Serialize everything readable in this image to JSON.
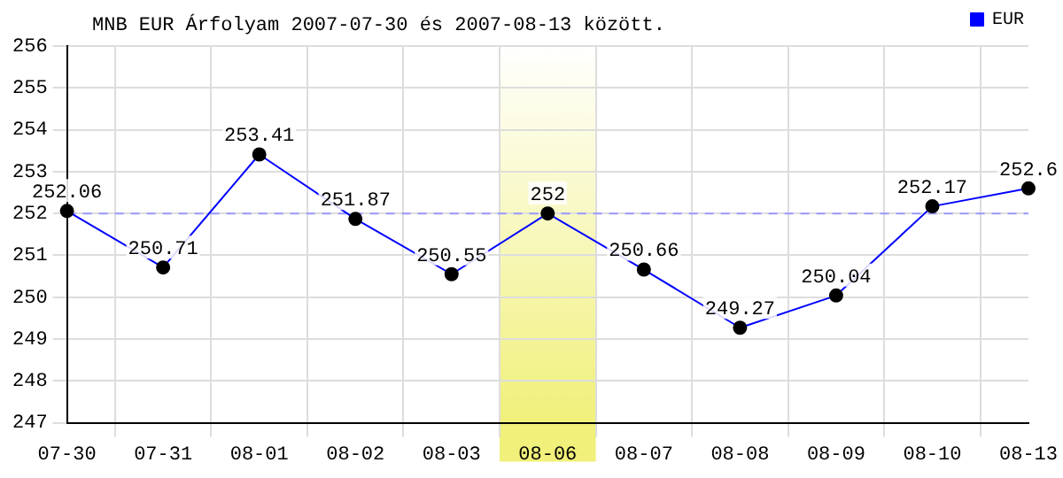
{
  "chart_data": {
    "type": "line",
    "title": "MNB EUR Árfolyam 2007-07-30 és 2007-08-13 között.",
    "categories": [
      "07-30",
      "07-31",
      "08-01",
      "08-02",
      "08-03",
      "08-06",
      "08-07",
      "08-08",
      "08-09",
      "08-10",
      "08-13"
    ],
    "series": [
      {
        "name": "EUR",
        "color": "#0000ff",
        "values": [
          252.06,
          250.71,
          253.41,
          251.87,
          250.55,
          252,
          250.66,
          249.27,
          250.04,
          252.17,
          252.6
        ]
      }
    ],
    "ylim": [
      247,
      256
    ],
    "yticks": [
      247,
      248,
      249,
      250,
      251,
      252,
      253,
      254,
      255,
      256
    ],
    "ref_lines": [
      {
        "axis": "y",
        "value": 252,
        "color": "#9999ff",
        "line_style": "dashed"
      }
    ],
    "bands": [
      {
        "axis": "x",
        "from": "08-06",
        "to": "08-06",
        "color": "#f0f07a"
      }
    ],
    "grid": true,
    "legend": "top right",
    "marker": "circle",
    "line_style": "solid",
    "data_labels": true
  }
}
